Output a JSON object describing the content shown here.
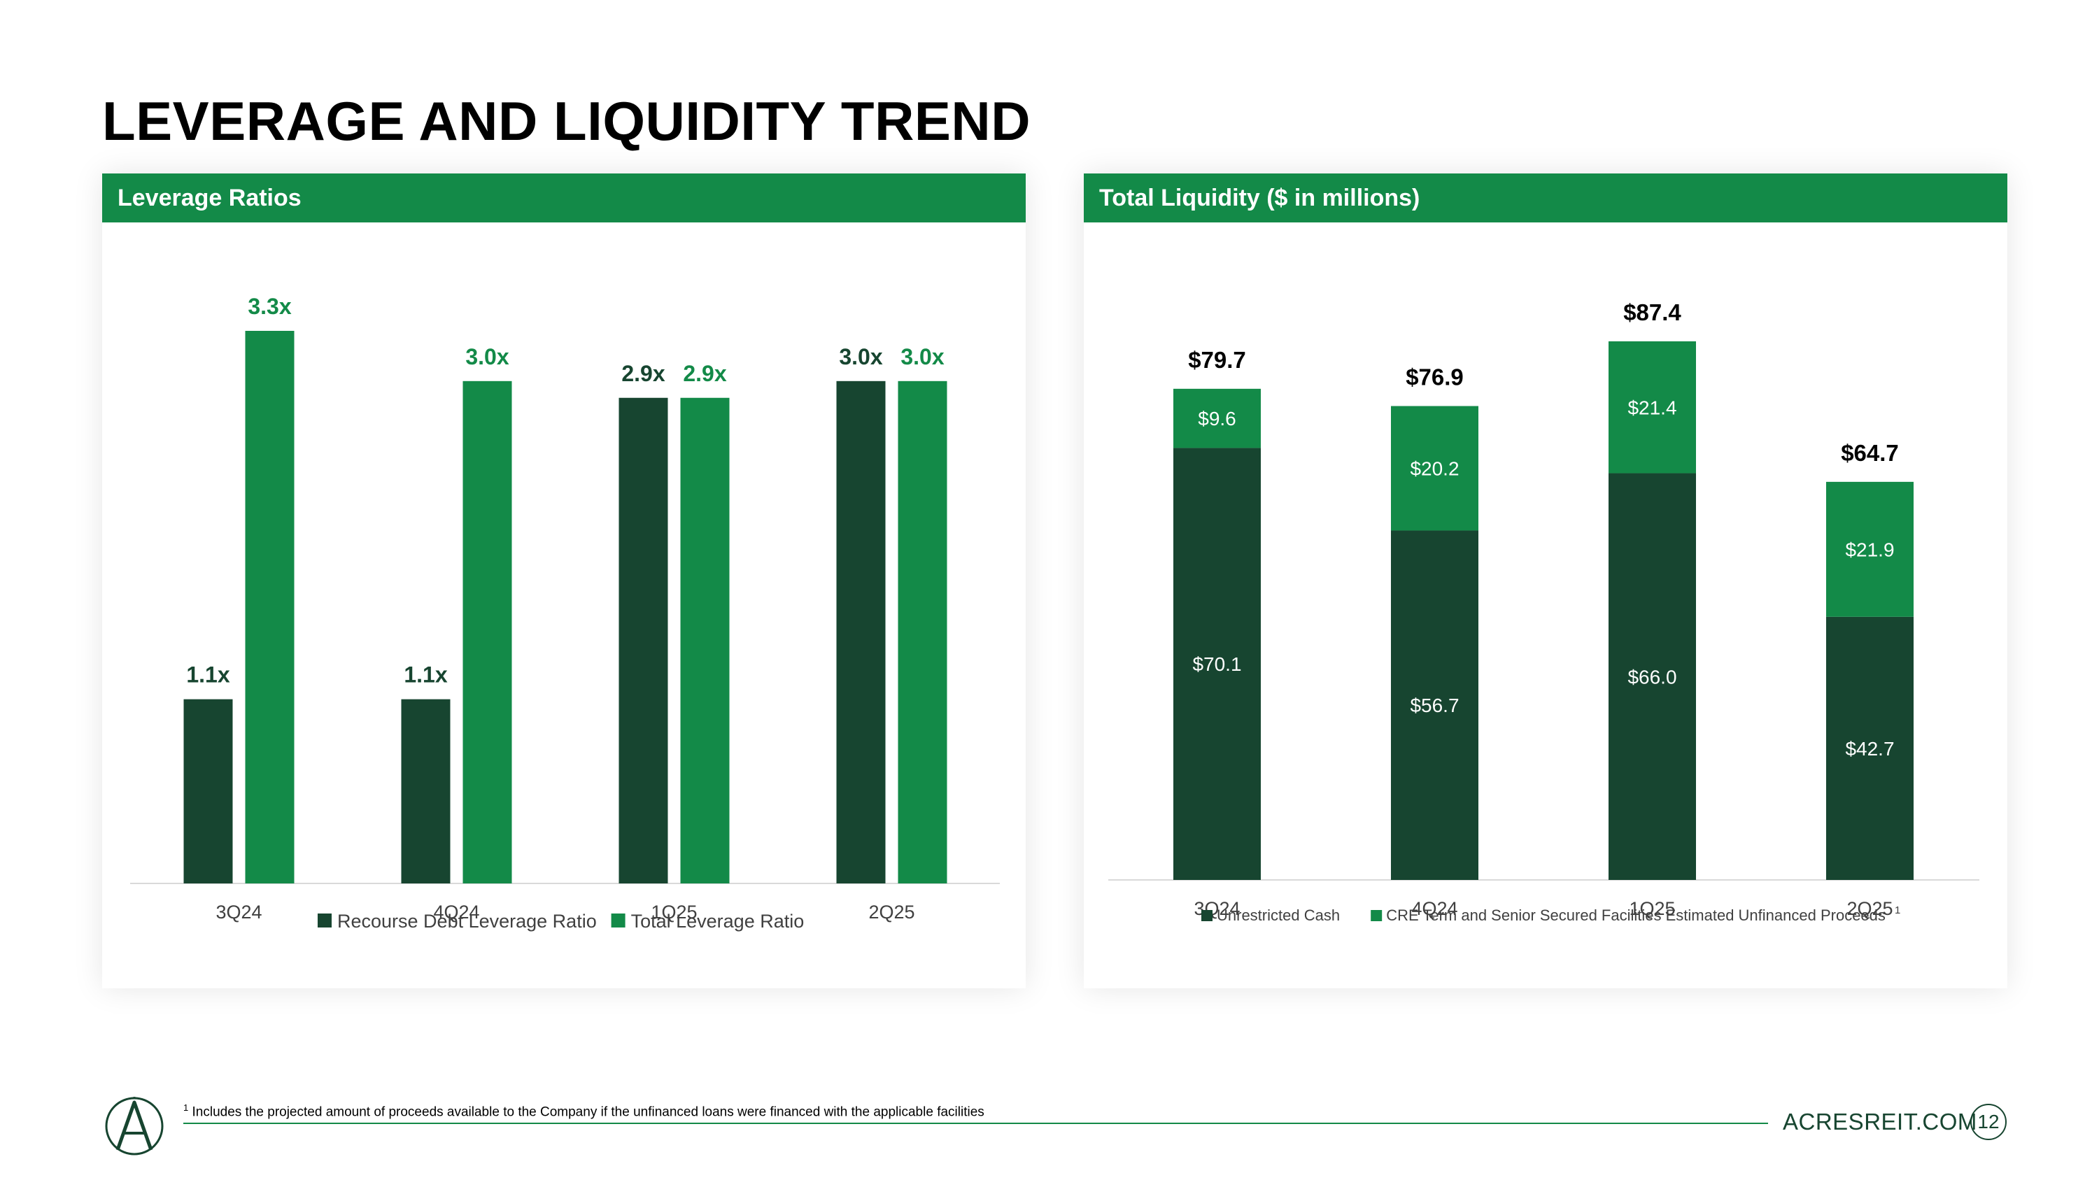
{
  "page": {
    "title": "LEVERAGE AND LIQUIDITY TREND",
    "footnote": "Includes the projected amount of proceeds available to the Company if the unfinanced loans were financed with the applicable facilities",
    "footnote_marker": "1",
    "website": "ACRESREIT.COM",
    "page_number": "12",
    "logo_icon": "acres-logo-icon"
  },
  "colors": {
    "dark_green": "#174530",
    "bright_green": "#138A48",
    "axis": "#D9D9D9",
    "text": "#000000",
    "label_gray": "#404040"
  },
  "chart_data": [
    {
      "type": "bar",
      "panel_title": "Leverage Ratios",
      "categories": [
        "3Q24",
        "4Q24",
        "1Q25",
        "2Q25"
      ],
      "series": [
        {
          "name": "Recourse Debt Leverage Ratio",
          "values": [
            1.1,
            1.1,
            2.9,
            3.0
          ],
          "labels": [
            "1.1x",
            "1.1x",
            "2.9x",
            "3.0x"
          ],
          "color": "#174530"
        },
        {
          "name": "Total Leverage Ratio",
          "values": [
            3.3,
            3.0,
            2.9,
            3.0
          ],
          "labels": [
            "3.3x",
            "3.0x",
            "2.9x",
            "3.0x"
          ],
          "color": "#138A48"
        }
      ],
      "ylim": [
        0,
        3.3
      ],
      "grid": false,
      "legend": "bottom"
    },
    {
      "type": "bar",
      "stacked": true,
      "panel_title": "Total Liquidity ($ in millions)",
      "categories": [
        "3Q24",
        "4Q24",
        "1Q25",
        "2Q25"
      ],
      "series": [
        {
          "name": "Unrestricted Cash",
          "values": [
            70.1,
            56.7,
            66.0,
            42.7
          ],
          "labels": [
            "$70.1",
            "$56.7",
            "$66.0",
            "$42.7"
          ],
          "color": "#174530"
        },
        {
          "name": "CRE Term and Senior Secured Facilities Estimated Unfinanced Proceeds",
          "name_marker": "1",
          "values": [
            9.6,
            20.2,
            21.4,
            21.9
          ],
          "labels": [
            "$9.6",
            "$20.2",
            "$21.4",
            "$21.9"
          ],
          "color": "#138A48"
        }
      ],
      "totals": [
        79.7,
        76.9,
        87.4,
        64.7
      ],
      "total_labels": [
        "$79.7",
        "$76.9",
        "$87.4",
        "$64.7"
      ],
      "ylim": [
        0,
        87.4
      ],
      "grid": false,
      "legend": "bottom"
    }
  ]
}
